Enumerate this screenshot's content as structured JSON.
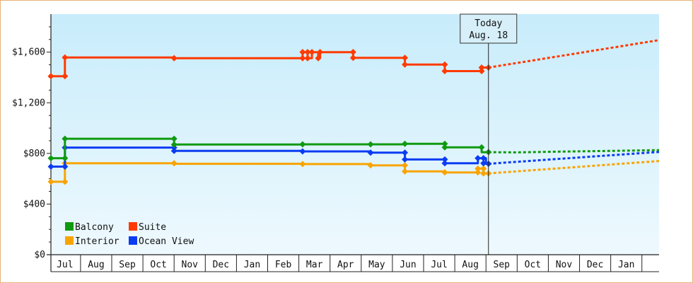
{
  "chart_data": {
    "type": "line",
    "title": "",
    "xlabel": "",
    "ylabel": "",
    "ylim": [
      0,
      1900
    ],
    "y_ticks": [
      {
        "value": 0,
        "label": "$0"
      },
      {
        "value": 400,
        "label": "$400"
      },
      {
        "value": 800,
        "label": "$800"
      },
      {
        "value": 1200,
        "label": "$1,200"
      },
      {
        "value": 1600,
        "label": "$1,600"
      }
    ],
    "month_labels": [
      "Jul",
      "Aug",
      "Sep",
      "Oct",
      "Nov",
      "Dec",
      "Jan",
      "Feb",
      "Mar",
      "Apr",
      "May",
      "Jun",
      "Jul",
      "Aug",
      "Sep",
      "Oct",
      "Nov",
      "Dec",
      "Jan"
    ],
    "x_range_months": [
      -0.45,
      19.05
    ],
    "today": {
      "line1": "Today",
      "line2": "Aug. 18",
      "x": 13.58
    },
    "legend": {
      "placement": "bottom-left",
      "entries": [
        {
          "name": "Balcony",
          "color": "#109a10"
        },
        {
          "name": "Suite",
          "color": "#ff3a00"
        },
        {
          "name": "Interior",
          "color": "#f8a400"
        },
        {
          "name": "Ocean View",
          "color": "#0a3cf2"
        }
      ]
    },
    "series": [
      {
        "name": "Suite",
        "color": "#ff3a00",
        "points": [
          [
            -0.45,
            1410
          ],
          [
            0.0,
            1410
          ],
          [
            0.0,
            1558
          ],
          [
            3.5,
            1558
          ],
          [
            3.5,
            1552
          ],
          [
            7.62,
            1552
          ],
          [
            7.62,
            1600
          ],
          [
            7.78,
            1600
          ],
          [
            7.78,
            1552
          ],
          [
            7.92,
            1552
          ],
          [
            7.92,
            1600
          ],
          [
            8.12,
            1600
          ],
          [
            8.12,
            1552
          ],
          [
            8.18,
            1552
          ],
          [
            8.18,
            1600
          ],
          [
            9.24,
            1600
          ],
          [
            9.24,
            1555
          ],
          [
            10.9,
            1555
          ],
          [
            10.9,
            1502
          ],
          [
            12.18,
            1502
          ],
          [
            12.18,
            1450
          ],
          [
            13.36,
            1450
          ],
          [
            13.36,
            1478
          ],
          [
            13.58,
            1478
          ]
        ],
        "markers": [
          [
            -0.45,
            1410
          ],
          [
            0.0,
            1410
          ],
          [
            0.0,
            1558
          ],
          [
            3.5,
            1552
          ],
          [
            7.62,
            1552
          ],
          [
            7.62,
            1600
          ],
          [
            7.78,
            1600
          ],
          [
            7.78,
            1552
          ],
          [
            7.92,
            1600
          ],
          [
            8.12,
            1552
          ],
          [
            8.18,
            1600
          ],
          [
            9.24,
            1600
          ],
          [
            9.24,
            1555
          ],
          [
            10.9,
            1555
          ],
          [
            10.9,
            1502
          ],
          [
            12.18,
            1502
          ],
          [
            12.18,
            1450
          ],
          [
            13.36,
            1450
          ],
          [
            13.36,
            1478
          ],
          [
            13.58,
            1478
          ]
        ],
        "forecast": [
          [
            13.58,
            1478
          ],
          [
            19.05,
            1695
          ]
        ]
      },
      {
        "name": "Balcony",
        "color": "#109a10",
        "points": [
          [
            -0.45,
            762
          ],
          [
            0.0,
            762
          ],
          [
            0.0,
            916
          ],
          [
            3.5,
            916
          ],
          [
            3.5,
            870
          ],
          [
            7.62,
            870
          ],
          [
            7.62,
            872
          ],
          [
            10.9,
            872
          ],
          [
            10.9,
            876
          ],
          [
            12.18,
            876
          ],
          [
            12.18,
            848
          ],
          [
            13.36,
            848
          ],
          [
            13.36,
            810
          ],
          [
            13.58,
            810
          ]
        ],
        "markers": [
          [
            -0.45,
            762
          ],
          [
            0.0,
            762
          ],
          [
            0.0,
            916
          ],
          [
            3.5,
            916
          ],
          [
            3.5,
            870
          ],
          [
            7.62,
            872
          ],
          [
            9.8,
            872
          ],
          [
            10.9,
            876
          ],
          [
            12.18,
            876
          ],
          [
            12.18,
            848
          ],
          [
            13.36,
            848
          ],
          [
            13.58,
            810
          ]
        ],
        "forecast": [
          [
            13.58,
            810
          ],
          [
            14.5,
            808
          ],
          [
            16.0,
            815
          ],
          [
            17.5,
            820
          ],
          [
            19.05,
            826
          ]
        ]
      },
      {
        "name": "Ocean View",
        "color": "#0a3cf2",
        "points": [
          [
            -0.45,
            696
          ],
          [
            0.0,
            696
          ],
          [
            0.0,
            846
          ],
          [
            3.5,
            846
          ],
          [
            3.5,
            820
          ],
          [
            7.62,
            820
          ],
          [
            7.62,
            816
          ],
          [
            9.8,
            816
          ],
          [
            9.8,
            806
          ],
          [
            10.9,
            806
          ],
          [
            10.9,
            752
          ],
          [
            12.18,
            752
          ],
          [
            12.18,
            722
          ],
          [
            13.24,
            722
          ],
          [
            13.24,
            762
          ],
          [
            13.5,
            762
          ],
          [
            13.5,
            718
          ],
          [
            13.58,
            718
          ]
        ],
        "markers": [
          [
            -0.45,
            696
          ],
          [
            0.0,
            696
          ],
          [
            0.0,
            846
          ],
          [
            3.5,
            846
          ],
          [
            3.5,
            820
          ],
          [
            7.62,
            816
          ],
          [
            9.8,
            806
          ],
          [
            10.9,
            806
          ],
          [
            10.9,
            752
          ],
          [
            12.18,
            752
          ],
          [
            12.18,
            722
          ],
          [
            13.24,
            762
          ],
          [
            13.42,
            762
          ],
          [
            13.42,
            722
          ],
          [
            13.58,
            718
          ]
        ],
        "forecast": [
          [
            13.58,
            718
          ],
          [
            19.05,
            812
          ]
        ]
      },
      {
        "name": "Interior",
        "color": "#f8a400",
        "points": [
          [
            -0.45,
            576
          ],
          [
            0.0,
            576
          ],
          [
            0.0,
            722
          ],
          [
            3.5,
            722
          ],
          [
            3.5,
            718
          ],
          [
            7.62,
            718
          ],
          [
            7.62,
            716
          ],
          [
            9.8,
            716
          ],
          [
            9.8,
            706
          ],
          [
            10.9,
            706
          ],
          [
            10.9,
            658
          ],
          [
            12.18,
            658
          ],
          [
            12.18,
            650
          ],
          [
            13.24,
            650
          ],
          [
            13.24,
            680
          ],
          [
            13.42,
            680
          ],
          [
            13.42,
            642
          ],
          [
            13.58,
            642
          ]
        ],
        "markers": [
          [
            -0.45,
            576
          ],
          [
            0.0,
            576
          ],
          [
            0.0,
            722
          ],
          [
            3.5,
            722
          ],
          [
            7.62,
            716
          ],
          [
            9.8,
            706
          ],
          [
            10.9,
            706
          ],
          [
            10.9,
            658
          ],
          [
            12.18,
            650
          ],
          [
            13.24,
            650
          ],
          [
            13.24,
            680
          ],
          [
            13.42,
            680
          ],
          [
            13.42,
            642
          ],
          [
            13.58,
            642
          ]
        ],
        "forecast": [
          [
            13.58,
            642
          ],
          [
            19.05,
            740
          ]
        ]
      }
    ]
  }
}
